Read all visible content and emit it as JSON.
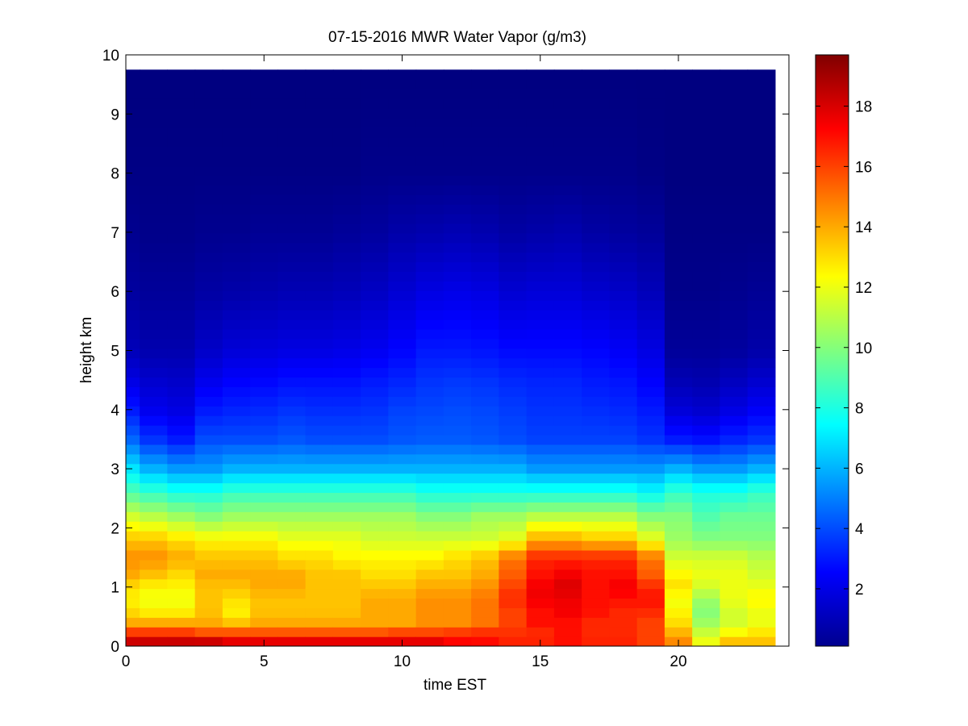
{
  "chart_data": {
    "type": "heatmap",
    "title": "07-15-2016 MWR Water Vapor (g/m3)",
    "xlabel": "time EST",
    "ylabel": "height km",
    "xlim": [
      0,
      24
    ],
    "ylim": [
      0,
      10
    ],
    "x_ticks": [
      0,
      5,
      10,
      15,
      20
    ],
    "y_ticks": [
      0,
      1,
      2,
      3,
      4,
      5,
      6,
      7,
      8,
      9,
      10
    ],
    "colorbar": {
      "range": [
        0.1,
        19.7
      ],
      "ticks": [
        2,
        4,
        6,
        8,
        10,
        12,
        14,
        16,
        18
      ],
      "colormap": "jet"
    },
    "colormap_stops": [
      "#00008f",
      "#0000ff",
      "#00ffff",
      "#ffff00",
      "#ff0000",
      "#800000"
    ],
    "time_hours": [
      0,
      1,
      2,
      3,
      4,
      5,
      6,
      7,
      8,
      9,
      10,
      11,
      12,
      13,
      14,
      15,
      16,
      17,
      18,
      19,
      20,
      21,
      22,
      23
    ],
    "profile_heights_km": [
      0,
      0.1,
      0.2,
      0.3,
      0.4,
      0.6,
      0.8,
      1.0,
      1.2,
      1.5,
      1.8,
      2.2,
      2.6,
      3.0,
      3.5,
      4.0,
      4.5,
      5.0,
      6.0,
      7.0,
      8.0,
      9.75
    ],
    "series": [
      {
        "name": "0",
        "values": [
          19.0,
          18.0,
          16.5,
          15.5,
          14.0,
          13.0,
          12.5,
          13.0,
          14.0,
          14.5,
          13.5,
          11.5,
          9.0,
          7.0,
          4.5,
          3.0,
          2.0,
          1.2,
          0.7,
          0.4,
          0.2,
          0.1
        ]
      },
      {
        "name": "1",
        "values": [
          19.2,
          18.0,
          16.5,
          15.5,
          14.0,
          12.5,
          12.0,
          12.5,
          13.5,
          14.5,
          13.5,
          11.0,
          8.5,
          6.0,
          3.5,
          2.2,
          1.6,
          1.0,
          0.6,
          0.3,
          0.2,
          0.1
        ]
      },
      {
        "name": "2",
        "values": [
          19.3,
          18.0,
          16.5,
          15.5,
          14.0,
          12.5,
          12.0,
          12.5,
          13.0,
          14.0,
          13.0,
          10.5,
          8.0,
          5.5,
          3.0,
          2.0,
          1.5,
          1.0,
          0.6,
          0.3,
          0.2,
          0.1
        ]
      },
      {
        "name": "3",
        "values": [
          19.0,
          18.0,
          16.0,
          15.0,
          14.0,
          13.5,
          13.5,
          13.5,
          14.0,
          13.5,
          12.5,
          10.0,
          8.0,
          5.5,
          4.0,
          3.0,
          2.2,
          1.5,
          0.8,
          0.4,
          0.2,
          0.1
        ]
      },
      {
        "name": "4",
        "values": [
          18.5,
          17.5,
          16.0,
          15.0,
          13.5,
          12.5,
          13.0,
          13.5,
          14.0,
          13.5,
          12.5,
          10.5,
          8.5,
          6.0,
          4.0,
          3.2,
          2.5,
          1.8,
          0.9,
          0.4,
          0.2,
          0.1
        ]
      },
      {
        "name": "5",
        "values": [
          18.5,
          17.5,
          16.0,
          15.0,
          14.0,
          13.5,
          13.5,
          14.0,
          14.0,
          13.5,
          12.5,
          10.5,
          8.5,
          6.0,
          4.0,
          3.3,
          2.6,
          1.9,
          1.0,
          0.5,
          0.2,
          0.1
        ]
      },
      {
        "name": "6",
        "values": [
          18.5,
          17.5,
          16.0,
          15.0,
          14.0,
          13.5,
          13.5,
          14.0,
          14.0,
          13.0,
          12.0,
          10.5,
          8.5,
          6.0,
          4.2,
          3.5,
          2.8,
          2.0,
          1.1,
          0.5,
          0.2,
          0.1
        ]
      },
      {
        "name": "7",
        "values": [
          18.5,
          17.5,
          16.0,
          15.0,
          14.0,
          13.5,
          13.5,
          13.5,
          13.5,
          13.0,
          12.0,
          10.5,
          8.5,
          6.0,
          4.0,
          3.4,
          2.8,
          2.0,
          1.1,
          0.5,
          0.2,
          0.1
        ]
      },
      {
        "name": "8",
        "values": [
          18.5,
          17.5,
          16.0,
          15.0,
          14.0,
          13.5,
          13.5,
          13.5,
          13.5,
          12.5,
          12.0,
          10.5,
          8.5,
          6.0,
          4.0,
          3.4,
          2.8,
          2.1,
          1.2,
          0.6,
          0.2,
          0.1
        ]
      },
      {
        "name": "9",
        "values": [
          18.5,
          17.5,
          16.0,
          15.0,
          14.0,
          14.0,
          14.0,
          13.5,
          13.0,
          12.5,
          11.5,
          10.5,
          8.5,
          6.0,
          4.0,
          3.5,
          3.0,
          2.3,
          1.4,
          0.7,
          0.3,
          0.1
        ]
      },
      {
        "name": "10",
        "values": [
          18.5,
          17.5,
          16.5,
          15.0,
          14.0,
          14.0,
          14.0,
          13.5,
          13.0,
          12.5,
          11.5,
          10.5,
          8.5,
          6.0,
          4.2,
          3.8,
          3.2,
          2.6,
          1.7,
          0.9,
          0.3,
          0.1
        ]
      },
      {
        "name": "11",
        "values": [
          18.5,
          17.5,
          16.5,
          15.0,
          14.5,
          14.5,
          14.5,
          14.0,
          13.5,
          12.5,
          11.5,
          10.0,
          8.0,
          6.0,
          4.3,
          3.9,
          3.5,
          3.0,
          2.0,
          1.0,
          0.3,
          0.1
        ]
      },
      {
        "name": "12",
        "values": [
          18.0,
          17.0,
          16.5,
          15.5,
          14.5,
          14.5,
          14.5,
          14.0,
          13.5,
          13.0,
          11.5,
          10.0,
          8.0,
          6.0,
          4.3,
          4.0,
          3.6,
          3.0,
          2.1,
          1.1,
          0.3,
          0.1
        ]
      },
      {
        "name": "13",
        "values": [
          17.5,
          17.0,
          16.5,
          16.0,
          15.0,
          15.0,
          15.0,
          14.5,
          14.0,
          13.5,
          11.5,
          10.5,
          8.0,
          6.0,
          4.2,
          3.9,
          3.5,
          2.9,
          2.0,
          1.0,
          0.3,
          0.1
        ]
      },
      {
        "name": "14",
        "values": [
          17.0,
          16.5,
          16.5,
          16.0,
          16.0,
          16.0,
          16.5,
          16.0,
          15.5,
          15.0,
          12.0,
          10.5,
          8.0,
          6.0,
          4.0,
          3.7,
          3.3,
          2.7,
          1.7,
          0.8,
          0.3,
          0.1
        ]
      },
      {
        "name": "15",
        "values": [
          17.0,
          16.5,
          16.5,
          16.5,
          17.0,
          17.0,
          17.5,
          17.5,
          17.0,
          16.5,
          14.0,
          11.0,
          8.0,
          5.5,
          3.8,
          3.5,
          3.2,
          2.7,
          1.8,
          0.9,
          0.3,
          0.1
        ]
      },
      {
        "name": "16",
        "values": [
          17.0,
          17.0,
          17.0,
          17.0,
          17.0,
          17.5,
          17.5,
          18.0,
          17.5,
          16.5,
          14.0,
          11.0,
          8.0,
          5.5,
          3.8,
          3.5,
          3.2,
          2.7,
          1.8,
          1.0,
          0.3,
          0.1
        ]
      },
      {
        "name": "17",
        "values": [
          17.0,
          16.5,
          16.5,
          16.5,
          16.5,
          17.0,
          17.0,
          17.0,
          17.0,
          16.5,
          13.5,
          11.0,
          8.0,
          5.5,
          3.8,
          3.4,
          3.0,
          2.6,
          1.6,
          0.8,
          0.3,
          0.1
        ]
      },
      {
        "name": "18",
        "values": [
          17.0,
          16.5,
          16.5,
          16.5,
          16.5,
          16.5,
          17.0,
          17.5,
          17.0,
          16.5,
          13.5,
          11.0,
          8.0,
          5.5,
          3.8,
          3.3,
          2.9,
          2.4,
          1.5,
          0.7,
          0.3,
          0.1
        ]
      },
      {
        "name": "19",
        "values": [
          16.0,
          16.0,
          16.0,
          16.0,
          16.0,
          16.5,
          17.0,
          16.5,
          15.5,
          15.0,
          12.0,
          10.0,
          7.5,
          5.5,
          3.5,
          3.0,
          2.5,
          2.0,
          1.2,
          0.6,
          0.2,
          0.1
        ]
      },
      {
        "name": "20",
        "values": [
          15.0,
          14.5,
          14.0,
          13.5,
          13.0,
          12.5,
          12.0,
          13.0,
          12.5,
          11.5,
          10.5,
          10.0,
          8.5,
          6.0,
          3.0,
          1.8,
          1.1,
          0.6,
          0.3,
          0.2,
          0.1,
          0.1
        ]
      },
      {
        "name": "21",
        "values": [
          12.0,
          12.0,
          11.5,
          11.0,
          10.5,
          10.0,
          10.5,
          11.5,
          12.0,
          11.5,
          10.0,
          9.0,
          8.0,
          5.5,
          2.8,
          1.6,
          1.0,
          0.6,
          0.3,
          0.2,
          0.1,
          0.1
        ]
      },
      {
        "name": "22",
        "values": [
          13.5,
          13.5,
          12.5,
          12.0,
          11.5,
          11.5,
          12.0,
          12.0,
          12.0,
          11.5,
          10.0,
          9.5,
          8.0,
          5.5,
          3.2,
          2.0,
          1.3,
          0.7,
          0.4,
          0.2,
          0.1,
          0.1
        ]
      },
      {
        "name": "23",
        "values": [
          13.5,
          13.5,
          13.0,
          12.5,
          12.0,
          12.0,
          12.5,
          12.0,
          11.5,
          11.0,
          10.0,
          9.5,
          8.5,
          6.0,
          3.5,
          2.4,
          1.6,
          0.9,
          0.5,
          0.2,
          0.1,
          0.1
        ]
      }
    ]
  }
}
